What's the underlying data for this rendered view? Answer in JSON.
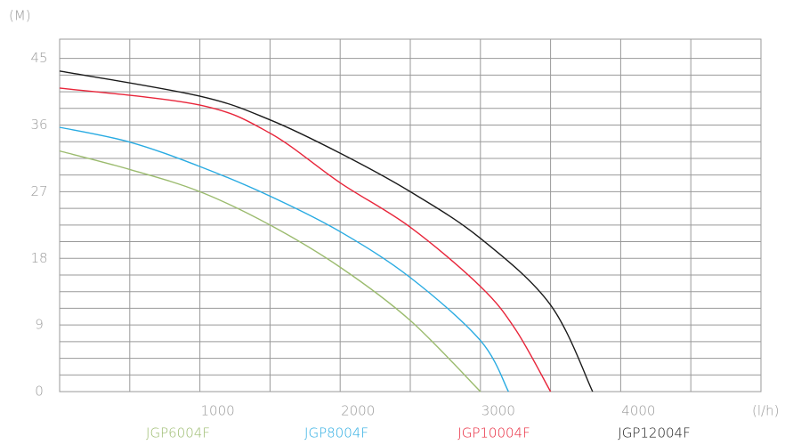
{
  "chart_data": {
    "type": "line",
    "y_label": "(M)",
    "x_label": "(l/h)",
    "xlim": [
      0,
      5000
    ],
    "xticks": [
      1000,
      2000,
      3000,
      4000
    ],
    "ylim": [
      0,
      47.6
    ],
    "yticks": [
      0,
      9,
      18,
      27,
      36,
      45
    ],
    "grid": true,
    "series": [
      {
        "name": "JGP6004F",
        "color": "#9bbb6e",
        "x": [
          0,
          500,
          1000,
          1500,
          2000,
          2500,
          3000
        ],
        "values": [
          32.5,
          30,
          27,
          22.5,
          16.8,
          9.6,
          0
        ]
      },
      {
        "name": "JGP8004F",
        "color": "#29abe2",
        "x": [
          0,
          500,
          1000,
          1500,
          2000,
          2500,
          3000,
          3200
        ],
        "values": [
          35.7,
          33.7,
          30.4,
          26.4,
          21.6,
          15.4,
          6.9,
          0
        ]
      },
      {
        "name": "JGP10004F",
        "color": "#e8253a",
        "x": [
          0,
          1000,
          1500,
          2000,
          2500,
          3000,
          3250,
          3500
        ],
        "values": [
          41,
          38.7,
          34.9,
          28.2,
          22.2,
          14.2,
          8.4,
          0
        ]
      },
      {
        "name": "JGP12004F",
        "color": "#1a1a1a",
        "x": [
          0,
          1000,
          1500,
          2000,
          2500,
          3000,
          3500,
          3800
        ],
        "values": [
          43.3,
          39.9,
          36.7,
          32.2,
          27,
          20.7,
          11.7,
          0
        ]
      }
    ]
  }
}
